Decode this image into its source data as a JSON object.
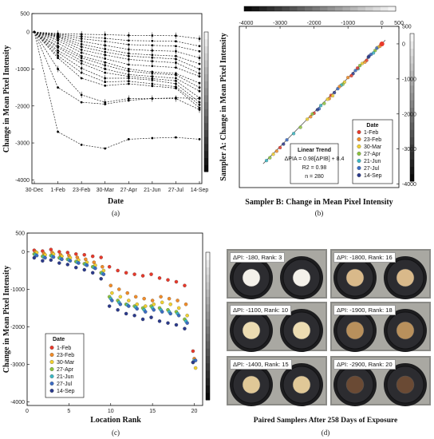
{
  "chart_data": [
    {
      "panel": "(a)",
      "type": "line",
      "xlabel": "Date",
      "ylabel": "Change in Mean Pixel Intensity",
      "x_ticks": [
        "30-Dec",
        "1-Feb",
        "23-Feb",
        "30-Mar",
        "27-Apr",
        "21-Jun",
        "27-Jul",
        "14-Sep"
      ],
      "y_ticks": [
        "500",
        "0",
        "-1000",
        "-2000",
        "-3000",
        "-4000"
      ],
      "ylim": [
        -4100,
        500
      ],
      "grid": false,
      "series": [
        {
          "values": [
            0,
            -40,
            -60,
            -70,
            -90,
            -95,
            -100,
            -180
          ]
        },
        {
          "values": [
            0,
            -60,
            -120,
            -170,
            -230,
            -240,
            -250,
            -380
          ]
        },
        {
          "values": [
            0,
            -80,
            -180,
            -250,
            -340,
            -360,
            -380,
            -520
          ]
        },
        {
          "values": [
            0,
            -100,
            -250,
            -360,
            -470,
            -500,
            -520,
            -700
          ]
        },
        {
          "values": [
            0,
            -120,
            -330,
            -460,
            -580,
            -620,
            -650,
            -860
          ]
        },
        {
          "values": [
            0,
            -140,
            -400,
            -540,
            -650,
            -690,
            -730,
            -1000
          ]
        },
        {
          "values": [
            0,
            -180,
            -480,
            -620,
            -740,
            -790,
            -830,
            -1120
          ]
        },
        {
          "values": [
            0,
            -230,
            -560,
            -720,
            -880,
            -920,
            -960,
            -1200
          ]
        },
        {
          "values": [
            0,
            -300,
            -650,
            -820,
            -1000,
            -1080,
            -1120,
            -1380
          ]
        },
        {
          "values": [
            0,
            -380,
            -700,
            -900,
            -1060,
            -1120,
            -1160,
            -1500
          ]
        },
        {
          "values": [
            0,
            -420,
            -780,
            -1000,
            -1150,
            -1200,
            -1250,
            -1600
          ]
        },
        {
          "values": [
            0,
            -500,
            -850,
            -1100,
            -1200,
            -1260,
            -1320,
            -1780
          ]
        },
        {
          "values": [
            0,
            -560,
            -980,
            -1250,
            -1250,
            -1300,
            -1400,
            -1900
          ]
        },
        {
          "values": [
            0,
            -640,
            -1100,
            -1350,
            -1330,
            -1400,
            -1480,
            -1970
          ]
        },
        {
          "values": [
            0,
            -700,
            -1250,
            -1450,
            -1400,
            -1460,
            -1520,
            -2050
          ]
        },
        {
          "values": [
            0,
            -1000,
            -1700,
            -1900,
            -1800,
            -1800,
            -1800,
            -2100
          ]
        },
        {
          "values": [
            0,
            -1500,
            -1900,
            -1950,
            -1850,
            -1800,
            -1780,
            -1800
          ]
        },
        {
          "values": [
            0,
            -2700,
            -3050,
            -3150,
            -2900,
            -2870,
            -2850,
            -2900
          ]
        }
      ]
    },
    {
      "panel": "(b)",
      "type": "scatter",
      "xlabel": "Sampler B: Change in Mean Pixel Intensity",
      "ylabel": "Sampler A: Change in Mean Pixel Intensity",
      "x_ticks": [
        "-4000",
        "-3000",
        "-2000",
        "-1000",
        "0",
        "500"
      ],
      "y_ticks": [
        "500",
        "0",
        "-1000",
        "-2000",
        "-3000",
        "-4000"
      ],
      "xlim": [
        -4200,
        500
      ],
      "ylim": [
        -4100,
        500
      ],
      "legend": {
        "title": "Date",
        "placement": "bottom-right",
        "entries": [
          "1-Feb",
          "23-Feb",
          "30-Mar",
          "27-Apr",
          "21-Jun",
          "27-Jul",
          "14-Sep"
        ]
      },
      "trend": {
        "title": "Linear Trend",
        "equation": "ΔPIA = 0.98[ΔPIB] + 8.4",
        "r2": "R2 = 0.98",
        "n": "n = 280",
        "slope": 0.98,
        "intercept": 8.4
      },
      "x": [
        -30,
        -60,
        -120,
        -200,
        -250,
        -320,
        -400,
        -450,
        -500,
        -580,
        -650,
        -700,
        -780,
        -850,
        -900,
        -1000,
        -1100,
        -1150,
        -1200,
        -1300,
        -1400,
        -1500,
        -1550,
        -1600,
        -1700,
        -1800,
        -1850,
        -1900,
        -2000,
        -2100,
        -2200,
        -2400,
        -2600,
        -2800,
        -2900,
        -3000,
        -3100,
        -3200,
        -3300,
        -3400,
        -150,
        -380,
        -720,
        -1250,
        -1450,
        -2050
      ],
      "y": [
        -20,
        -70,
        -100,
        -190,
        -260,
        -300,
        -380,
        -470,
        -520,
        -560,
        -620,
        -710,
        -760,
        -850,
        -910,
        -960,
        -1090,
        -1150,
        -1180,
        -1280,
        -1390,
        -1470,
        -1560,
        -1580,
        -1700,
        -1760,
        -1850,
        -1880,
        -1980,
        -2080,
        -2150,
        -2380,
        -2560,
        -2740,
        -2860,
        -2960,
        -3060,
        -3150,
        -3250,
        -3330,
        -120,
        -350,
        -690,
        -1220,
        -1480,
        -2000
      ]
    },
    {
      "panel": "(c)",
      "type": "scatter",
      "xlabel": "Location Rank",
      "ylabel": "Change in Mean Pixel Intensity",
      "x_ticks": [
        "0",
        "5",
        "10",
        "15",
        "20"
      ],
      "y_ticks": [
        "500",
        "0",
        "-1000",
        "-2000",
        "-3000",
        "-4000"
      ],
      "xlim": [
        0,
        21
      ],
      "ylim": [
        -4100,
        500
      ],
      "legend": {
        "title": "Date",
        "placement": "bottom-left",
        "entries": [
          "1-Feb",
          "23-Feb",
          "30-Mar",
          "27-Apr",
          "21-Jun",
          "27-Jul",
          "14-Sep"
        ]
      },
      "ranks": [
        1,
        2,
        3,
        4,
        5,
        6,
        7,
        8,
        9,
        10,
        11,
        12,
        13,
        14,
        15,
        16,
        17,
        18,
        19,
        20
      ],
      "series": [
        {
          "name": "1-Feb",
          "values": [
            40,
            20,
            60,
            0,
            -20,
            -60,
            -80,
            -120,
            -150,
            -400,
            -500,
            -560,
            -600,
            -640,
            -600,
            -700,
            -750,
            -800,
            -900,
            -2650
          ]
        },
        {
          "name": "23-Feb",
          "values": [
            0,
            -40,
            -20,
            -80,
            -100,
            -150,
            -200,
            -280,
            -400,
            -900,
            -1000,
            -1100,
            -1200,
            -1250,
            -1300,
            -1200,
            -1250,
            -1300,
            -1400,
            -2850
          ]
        },
        {
          "name": "30-Mar",
          "values": [
            -20,
            -80,
            -60,
            -120,
            -160,
            -220,
            -280,
            -360,
            -500,
            -1100,
            -1200,
            -1300,
            -1400,
            -1450,
            -1400,
            -1350,
            -1400,
            -1500,
            -1700,
            -3100
          ]
        },
        {
          "name": "27-Apr",
          "values": [
            -60,
            -120,
            -100,
            -160,
            -200,
            -260,
            -320,
            -400,
            -560,
            -1200,
            -1300,
            -1400,
            -1450,
            -1500,
            -1450,
            -1500,
            -1550,
            -1600,
            -1800,
            -2950
          ]
        },
        {
          "name": "21-Jun",
          "values": [
            -80,
            -140,
            -120,
            -180,
            -220,
            -280,
            -340,
            -420,
            -580,
            -1250,
            -1350,
            -1420,
            -1480,
            -1550,
            -1500,
            -1550,
            -1600,
            -1650,
            -1850,
            -2900
          ]
        },
        {
          "name": "27-Jul",
          "values": [
            -100,
            -160,
            -140,
            -200,
            -240,
            -300,
            -360,
            -440,
            -600,
            -1300,
            -1400,
            -1450,
            -1520,
            -1600,
            -1550,
            -1600,
            -1650,
            -1700,
            -1900,
            -2900
          ]
        },
        {
          "name": "14-Sep",
          "values": [
            -160,
            -240,
            -220,
            -300,
            -340,
            -420,
            -480,
            -560,
            -720,
            -1450,
            -1550,
            -1650,
            -1700,
            -1800,
            -1750,
            -1850,
            -1900,
            -1950,
            -2050,
            -2950
          ]
        }
      ]
    }
  ],
  "colors": {
    "1-Feb": "#e8392b",
    "23-Feb": "#f28c28",
    "30-Mar": "#f2d130",
    "27-Apr": "#8cc43c",
    "21-Jun": "#3cb8c4",
    "27-Jul": "#3c6cc4",
    "14-Sep": "#2b3a8c",
    "line": "#222222"
  },
  "panel_d": {
    "caption": "Paired Samplers After 258 Days of Exposure",
    "label": "(d)",
    "photos": [
      {
        "label": "ΔPI: -180, Rank: 3",
        "disk": "#f4f1ea"
      },
      {
        "label": "ΔPI: -1800, Rank: 16",
        "disk": "#d9b98a"
      },
      {
        "label": "ΔPI: -1100, Rank: 10",
        "disk": "#ecdcb2"
      },
      {
        "label": "ΔPI: -1900, Rank: 18",
        "disk": "#b8905c"
      },
      {
        "label": "ΔPI: -1400, Rank: 15",
        "disk": "#e0c897"
      },
      {
        "label": "ΔPI: -2900, Rank: 20",
        "disk": "#6a4a34"
      }
    ]
  },
  "panel_labels": {
    "a": "(a)",
    "b": "(b)",
    "c": "(c)"
  }
}
